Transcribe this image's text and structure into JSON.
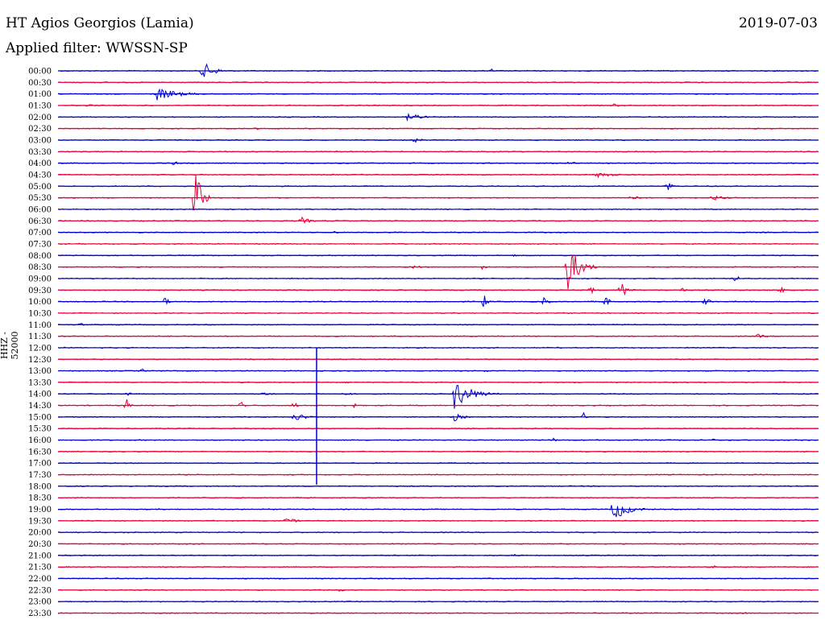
{
  "header": {
    "station": "HT Agios Georgios (Lamia)",
    "date": "2019-07-03",
    "filter": "Applied filter: WWSSN-SP",
    "channel": "HHZ - 52000"
  },
  "chart_data": {
    "type": "line",
    "title": "HT Agios Georgios (Lamia)",
    "subtitle": "Applied filter: WWSSN-SP",
    "ylabel": "HHZ - 52000",
    "grid": false,
    "colors": [
      "#0000cc",
      "#e8003a"
    ],
    "rows": [
      "00:00",
      "00:30",
      "01:00",
      "01:30",
      "02:00",
      "02:30",
      "03:00",
      "03:30",
      "04:00",
      "04:30",
      "05:00",
      "05:30",
      "06:00",
      "06:30",
      "07:00",
      "07:30",
      "08:00",
      "08:30",
      "09:00",
      "09:30",
      "10:00",
      "10:30",
      "11:00",
      "11:30",
      "12:00",
      "12:30",
      "13:00",
      "13:30",
      "14:00",
      "14:30",
      "15:00",
      "15:30",
      "16:00",
      "16:30",
      "17:00",
      "17:30",
      "18:00",
      "18:30",
      "19:00",
      "19:30",
      "20:00",
      "20:30",
      "21:00",
      "21:30",
      "22:00",
      "22:30",
      "23:00",
      "23:30"
    ],
    "events": [
      {
        "row": 0,
        "pos": 0.19,
        "amp": 12,
        "dur": 0.04
      },
      {
        "row": 0,
        "pos": 0.57,
        "amp": 3,
        "dur": 0.01
      },
      {
        "row": 2,
        "pos": 0.13,
        "amp": 8,
        "dur": 0.08
      },
      {
        "row": 3,
        "pos": 0.04,
        "amp": 3,
        "dur": 0.02
      },
      {
        "row": 3,
        "pos": 0.73,
        "amp": 3,
        "dur": 0.02
      },
      {
        "row": 4,
        "pos": 0.46,
        "amp": 12,
        "dur": 0.03
      },
      {
        "row": 5,
        "pos": 0.26,
        "amp": 2,
        "dur": 0.02
      },
      {
        "row": 6,
        "pos": 0.47,
        "amp": 4,
        "dur": 0.02
      },
      {
        "row": 8,
        "pos": 0.15,
        "amp": 4,
        "dur": 0.02
      },
      {
        "row": 8,
        "pos": 0.67,
        "amp": 4,
        "dur": 0.02
      },
      {
        "row": 9,
        "pos": 0.71,
        "amp": 4,
        "dur": 0.05
      },
      {
        "row": 10,
        "pos": 0.8,
        "amp": 7,
        "dur": 0.02
      },
      {
        "row": 11,
        "pos": 0.18,
        "amp": 48,
        "dur": 0.02
      },
      {
        "row": 11,
        "pos": 0.75,
        "amp": 3,
        "dur": 0.05
      },
      {
        "row": 11,
        "pos": 0.86,
        "amp": 4,
        "dur": 0.04
      },
      {
        "row": 13,
        "pos": 0.32,
        "amp": 5,
        "dur": 0.03
      },
      {
        "row": 14,
        "pos": 0.36,
        "amp": 3,
        "dur": 0.02
      },
      {
        "row": 16,
        "pos": 0.6,
        "amp": 3,
        "dur": 0.01
      },
      {
        "row": 17,
        "pos": 0.67,
        "amp": 32,
        "dur": 0.04
      },
      {
        "row": 17,
        "pos": 0.56,
        "amp": 7,
        "dur": 0.01
      },
      {
        "row": 17,
        "pos": 0.47,
        "amp": 6,
        "dur": 0.01
      },
      {
        "row": 18,
        "pos": 0.89,
        "amp": 9,
        "dur": 0.01
      },
      {
        "row": 19,
        "pos": 0.7,
        "amp": 8,
        "dur": 0.01
      },
      {
        "row": 19,
        "pos": 0.74,
        "amp": 14,
        "dur": 0.02
      },
      {
        "row": 19,
        "pos": 0.82,
        "amp": 7,
        "dur": 0.01
      },
      {
        "row": 19,
        "pos": 0.95,
        "amp": 7,
        "dur": 0.01
      },
      {
        "row": 20,
        "pos": 0.14,
        "amp": 10,
        "dur": 0.01
      },
      {
        "row": 20,
        "pos": 0.56,
        "amp": 16,
        "dur": 0.01
      },
      {
        "row": 20,
        "pos": 0.64,
        "amp": 14,
        "dur": 0.01
      },
      {
        "row": 20,
        "pos": 0.72,
        "amp": 12,
        "dur": 0.01
      },
      {
        "row": 20,
        "pos": 0.85,
        "amp": 6,
        "dur": 0.02
      },
      {
        "row": 22,
        "pos": 0.03,
        "amp": 3,
        "dur": 0.01
      },
      {
        "row": 23,
        "pos": 0.92,
        "amp": 3,
        "dur": 0.03
      },
      {
        "row": 26,
        "pos": 0.11,
        "amp": 4,
        "dur": 0.01
      },
      {
        "row": 26,
        "pos": 0.56,
        "amp": 2,
        "dur": 0.02
      },
      {
        "row": 27,
        "pos": 0.38,
        "amp": 3,
        "dur": 0.01
      },
      {
        "row": 28,
        "pos": 0.09,
        "amp": 4,
        "dur": 0.02
      },
      {
        "row": 28,
        "pos": 0.27,
        "amp": 5,
        "dur": 0.02
      },
      {
        "row": 28,
        "pos": 0.38,
        "amp": 6,
        "dur": 0.01
      },
      {
        "row": 28,
        "pos": 0.52,
        "amp": 20,
        "dur": 0.06
      },
      {
        "row": 29,
        "pos": 0.09,
        "amp": 9,
        "dur": 0.01
      },
      {
        "row": 29,
        "pos": 0.24,
        "amp": 7,
        "dur": 0.01
      },
      {
        "row": 29,
        "pos": 0.31,
        "amp": 8,
        "dur": 0.01
      },
      {
        "row": 29,
        "pos": 0.39,
        "amp": 7,
        "dur": 0.01
      },
      {
        "row": 30,
        "pos": 0.31,
        "amp": 6,
        "dur": 0.04
      },
      {
        "row": 30,
        "pos": 0.52,
        "amp": 6,
        "dur": 0.03
      },
      {
        "row": 30,
        "pos": 0.69,
        "amp": 8,
        "dur": 0.01
      },
      {
        "row": 32,
        "pos": 0.65,
        "amp": 5,
        "dur": 0.01
      },
      {
        "row": 32,
        "pos": 0.86,
        "amp": 2,
        "dur": 0.02
      },
      {
        "row": 38,
        "pos": 0.73,
        "amp": 15,
        "dur": 0.05
      },
      {
        "row": 39,
        "pos": 0.3,
        "amp": 4,
        "dur": 0.04
      },
      {
        "row": 40,
        "pos": 0.1,
        "amp": 2,
        "dur": 0.01
      },
      {
        "row": 42,
        "pos": 0.6,
        "amp": 2,
        "dur": 0.01
      },
      {
        "row": 43,
        "pos": 0.86,
        "amp": 2,
        "dur": 0.02
      },
      {
        "row": 45,
        "pos": 0.37,
        "amp": 2,
        "dur": 0.02
      },
      {
        "row": 47,
        "pos": 0.9,
        "amp": 2,
        "dur": 0.02
      }
    ],
    "spikes": [
      {
        "row": 24,
        "pos": 0.34,
        "amp": 170
      }
    ]
  }
}
